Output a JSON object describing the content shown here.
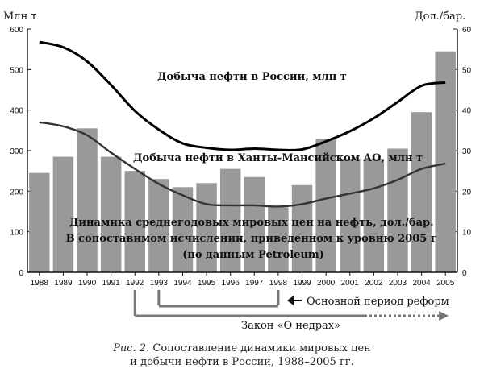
{
  "chart_data": {
    "type": "bar",
    "left_axis_unit": "Млн т",
    "right_axis_unit": "Дол./бар.",
    "left_ylim": [
      0,
      600
    ],
    "left_ticks": [
      0,
      100,
      200,
      300,
      400,
      500,
      600
    ],
    "right_ylim": [
      0,
      60
    ],
    "right_ticks": [
      0,
      10,
      20,
      30,
      40,
      50,
      60
    ],
    "categories": [
      "1988",
      "1989",
      "1990",
      "1991",
      "1992",
      "1993",
      "1994",
      "1995",
      "1996",
      "1997",
      "1998",
      "1999",
      "2000",
      "2001",
      "2002",
      "2003",
      "2004",
      "2005"
    ],
    "bar_color": "#999999",
    "grid": false,
    "series": [
      {
        "name": "Динамика среднегодовых мировых цен на нефть, дол./бар. В сопоставимом исчислении, приведенном к уровню 2005 г (по данным Petroleum)",
        "axis": "right",
        "type": "bar",
        "values": [
          24.5,
          28.5,
          35.5,
          28.5,
          25,
          23,
          21,
          22,
          25.5,
          23.5,
          16,
          21.5,
          32.8,
          28,
          28,
          30.5,
          39.5,
          54.5
        ]
      },
      {
        "name": "Добыча нефти в России, млн т",
        "axis": "left",
        "type": "line",
        "color": "#000000",
        "values": [
          568,
          555,
          520,
          462,
          398,
          352,
          318,
          307,
          302,
          305,
          302,
          303,
          323,
          348,
          380,
          420,
          460,
          468
        ]
      },
      {
        "name": "Добыча нефти в Ханты-Мансийском АО, млн т",
        "axis": "left",
        "type": "line",
        "color": "#333333",
        "values": [
          370,
          360,
          338,
          295,
          255,
          218,
          190,
          168,
          165,
          165,
          162,
          168,
          182,
          194,
          207,
          228,
          255,
          268
        ]
      }
    ],
    "periods": [
      {
        "label": "Основной период реформ",
        "from": "1993",
        "to": "1998"
      },
      {
        "label": "Закон «О недрах»",
        "from": "1992",
        "to": "2005"
      }
    ]
  },
  "caption": {
    "prefix": "Рис. 2.",
    "text": "Сопоставление динамики мировых цен",
    "line2": "и добычи нефти в России, 1988–2005 гг."
  }
}
